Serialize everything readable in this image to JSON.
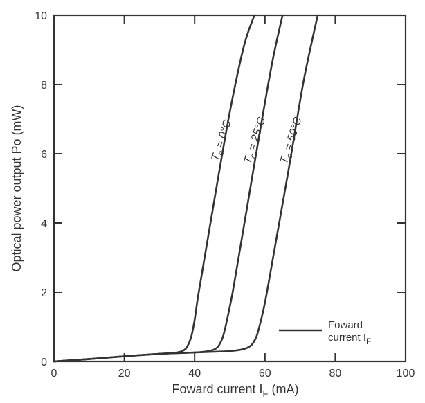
{
  "chart_data": {
    "type": "line",
    "title": "",
    "xlabel": "Foward current Iₑ (mA)",
    "xlabel_parts": {
      "main": "Foward current I",
      "sub": "F",
      "unit": "(mA)"
    },
    "ylabel": "Optical power output Po (mW)",
    "xlim": [
      0,
      100
    ],
    "ylim": [
      0,
      10
    ],
    "x_ticks": [
      0,
      20,
      40,
      60,
      80,
      100
    ],
    "y_ticks": [
      0,
      2,
      4,
      6,
      8,
      10
    ],
    "grid": false,
    "legend": {
      "placement": "bottom-right",
      "line1": "Foward",
      "line2": "current I",
      "sub": "F"
    },
    "series": [
      {
        "name": "T_c = 0°C",
        "label_main": "T",
        "label_sub": "c",
        "label_rest": " = 0°C",
        "x": [
          0,
          10,
          20,
          30,
          35,
          37,
          38,
          39,
          40,
          41,
          43,
          46,
          50,
          54,
          57
        ],
        "y": [
          0,
          0.07,
          0.15,
          0.22,
          0.26,
          0.33,
          0.45,
          0.7,
          1.2,
          1.9,
          3.1,
          4.9,
          7.2,
          9.1,
          10
        ]
      },
      {
        "name": "T_c = 25°C",
        "label_main": "T",
        "label_sub": "c",
        "label_rest": " = 25°C",
        "x": [
          0,
          10,
          20,
          30,
          40,
          44,
          46,
          47,
          48,
          49,
          51,
          54,
          58,
          62,
          65
        ],
        "y": [
          0,
          0.07,
          0.15,
          0.22,
          0.26,
          0.3,
          0.37,
          0.48,
          0.7,
          1.1,
          2.1,
          3.9,
          6.3,
          8.6,
          10
        ]
      },
      {
        "name": "T_c = 50°C",
        "label_main": "T",
        "label_sub": "c",
        "label_rest": " = 50°C",
        "x": [
          0,
          10,
          20,
          30,
          40,
          50,
          54,
          56,
          57,
          58,
          60,
          63,
          67,
          71,
          75
        ],
        "y": [
          0,
          0.07,
          0.15,
          0.22,
          0.26,
          0.3,
          0.36,
          0.46,
          0.6,
          0.85,
          1.7,
          3.4,
          5.7,
          8.1,
          10
        ]
      }
    ]
  }
}
